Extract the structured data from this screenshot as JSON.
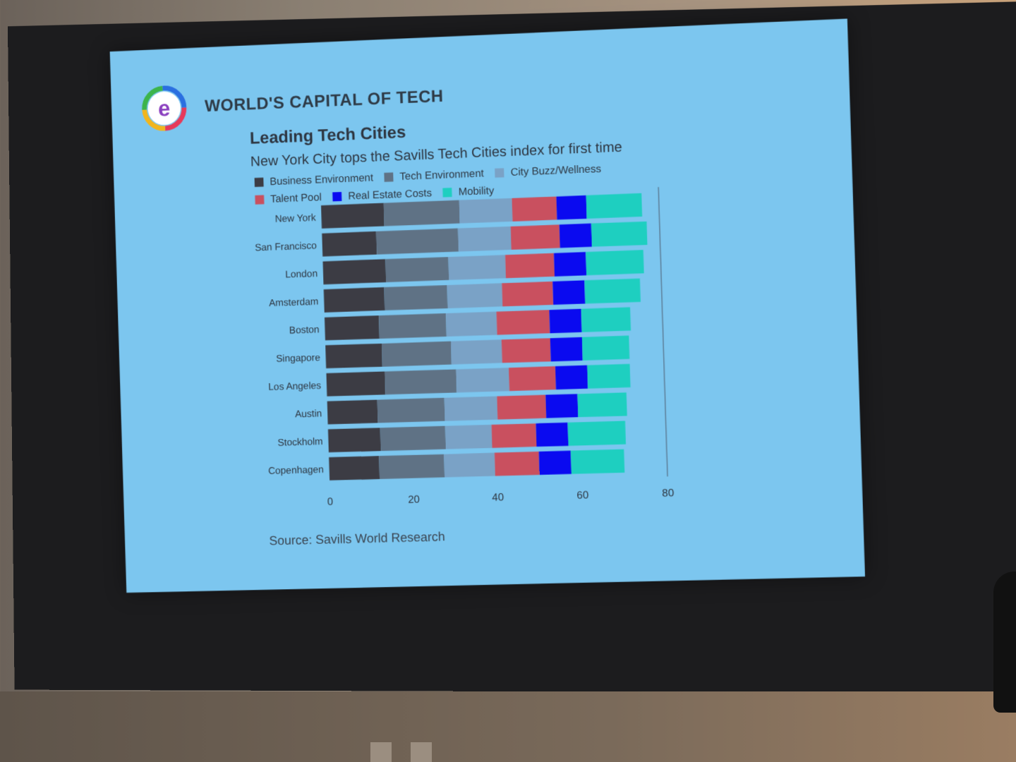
{
  "header": {
    "logo_letter": "e",
    "title": "WORLD'S CAPITAL OF TECH"
  },
  "chart": {
    "title": "Leading Tech Cities",
    "subtitle": "New York City tops the Savills Tech Cities index for first time",
    "source": "Source: Savills World Research"
  },
  "chart_data": {
    "type": "bar",
    "orientation": "horizontal",
    "stacked": true,
    "title": "Leading Tech Cities",
    "subtitle": "New York City tops the Savills Tech Cities index for first time",
    "xlabel": "",
    "ylabel": "",
    "xlim": [
      0,
      80
    ],
    "x_ticks": [
      0,
      20,
      40,
      60,
      80
    ],
    "legend_position": "top-left",
    "grid": false,
    "categories": [
      "New York",
      "San Francisco",
      "London",
      "Amsterdam",
      "Boston",
      "Singapore",
      "Los Angeles",
      "Austin",
      "Stockholm",
      "Copenhagen"
    ],
    "series": [
      {
        "name": "Business Environment",
        "color": "#3c3c44",
        "values": [
          15,
          13,
          15,
          14.5,
          13,
          13.5,
          14,
          12,
          12.5,
          12
        ]
      },
      {
        "name": "Tech Environment",
        "color": "#5f7285",
        "values": [
          18,
          19.5,
          15,
          15,
          16,
          16.5,
          17,
          16,
          15.5,
          15.5
        ]
      },
      {
        "name": "City Buzz/Wellness",
        "color": "#7aa2c6",
        "values": [
          12.5,
          12.5,
          13.5,
          13,
          12,
          12,
          12.5,
          12.5,
          11,
          12
        ]
      },
      {
        "name": "Talent Pool",
        "color": "#c9505f",
        "values": [
          10.5,
          11.5,
          11.5,
          12,
          12.5,
          11.5,
          11,
          11.5,
          10.5,
          10.5
        ]
      },
      {
        "name": "Real Estate Costs",
        "color": "#0a0af0",
        "values": [
          7,
          7.5,
          7.5,
          7.5,
          7.5,
          7.5,
          7.5,
          7.5,
          7.5,
          7.5
        ]
      },
      {
        "name": "Mobility",
        "color": "#1ecfc0",
        "values": [
          13,
          13,
          13.5,
          13,
          11.5,
          11,
          10,
          11.5,
          13.5,
          12.5
        ]
      }
    ]
  }
}
